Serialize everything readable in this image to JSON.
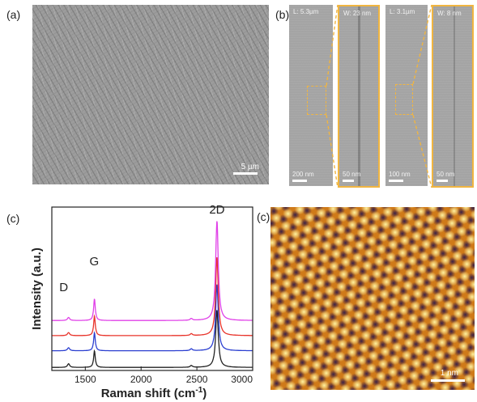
{
  "panels": {
    "a": {
      "label": "(a)",
      "scale_bar": "5 µm"
    },
    "b": {
      "label": "(b)",
      "left_pair": {
        "overview_length": "L: 5.3µm",
        "overview_scale": "200 nm",
        "zoom_width": "W: 23 nm",
        "zoom_scale": "50 nm"
      },
      "right_pair": {
        "overview_length": "L: 3.1µm",
        "overview_scale": "100 nm",
        "zoom_width": "W: 8 nm",
        "zoom_scale": "50 nm"
      }
    },
    "c_raman": {
      "label": "(c)"
    },
    "c_stm": {
      "label": "(c)",
      "scale_bar": "1 nm"
    }
  },
  "colors": {
    "zoom_frame": "#f0b541",
    "stm_dark": "#3a2046",
    "stm_mid": "#cf7a19",
    "stm_bright": "#fff2a0"
  },
  "chart_data": {
    "type": "line",
    "xlabel": "Raman shift (cm",
    "xlabel_sup": "-1",
    "xlabel_end": ")",
    "ylabel": "Intensity (a.u.)",
    "xlim": [
      1200,
      3000
    ],
    "xticks": [
      "1500",
      "2000",
      "2500",
      "3000"
    ],
    "peak_labels": [
      {
        "text": "D",
        "x": 1350
      },
      {
        "text": "G",
        "x": 1580
      },
      {
        "text": "2D",
        "x": 2680
      }
    ],
    "series": [
      {
        "color": "#222222",
        "offset": 0,
        "D": 0.12,
        "G": 0.55,
        "twoD": 1.9
      },
      {
        "color": "#2b3fd0",
        "offset": 0.55,
        "D": 0.1,
        "G": 0.6,
        "twoD": 2.2
      },
      {
        "color": "#e8332a",
        "offset": 1.05,
        "D": 0.1,
        "G": 0.65,
        "twoD": 2.6
      },
      {
        "color": "#e040e8",
        "offset": 1.55,
        "D": 0.1,
        "G": 0.72,
        "twoD": 3.3
      }
    ]
  }
}
